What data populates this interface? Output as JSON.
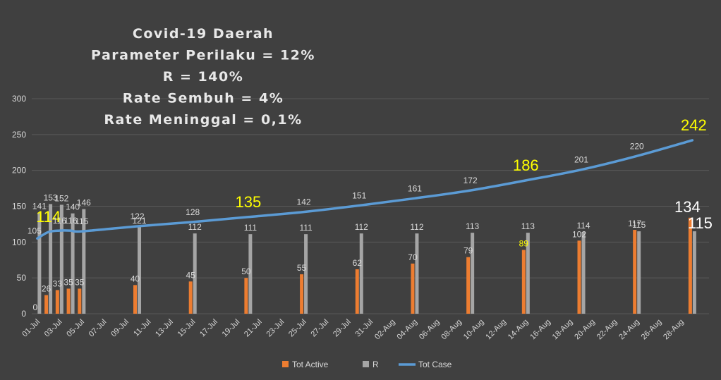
{
  "colors": {
    "background": "#404040",
    "gridline": "#595959",
    "tot_active": "#ed7d31",
    "r": "#a5a5a5",
    "tot_case": "#5b9bd5",
    "highlight": "#ffff00",
    "text": "#d9d9d9"
  },
  "chart_data": {
    "type": "bar",
    "title_lines": [
      "Covid-19 Daerah",
      "Parameter Perilaku = 12%",
      "R = 140%",
      "Rate Sembuh = 4%",
      "Rate Meninggal = 0,1%"
    ],
    "ylim": [
      0,
      300
    ],
    "yticks": [
      "0",
      "50",
      "100",
      "150",
      "200",
      "250",
      "300"
    ],
    "x_tick_labels": [
      "01-Jul",
      "03-Jul",
      "05-Jul",
      "07-Jul",
      "09-Jul",
      "11-Jul",
      "13-Jul",
      "15-Jul",
      "17-Jul",
      "19-Jul",
      "21-Jul",
      "23-Jul",
      "25-Jul",
      "27-Jul",
      "29-Jul",
      "31-Jul",
      "02-Aug",
      "04-Aug",
      "06-Aug",
      "08-Aug",
      "10-Aug",
      "12-Aug",
      "14-Aug",
      "16-Aug",
      "18-Aug",
      "20-Aug",
      "22-Aug",
      "24-Aug",
      "26-Aug",
      "28-Aug"
    ],
    "grid": true,
    "legend_position": "bottom",
    "categories": [
      "01-Jul",
      "02-Jul",
      "03-Jul",
      "04-Jul",
      "05-Jul",
      "10-Jul",
      "15-Jul",
      "20-Jul",
      "25-Jul",
      "30-Jul",
      "04-Aug",
      "09-Aug",
      "14-Aug",
      "19-Aug",
      "24-Aug",
      "29-Aug"
    ],
    "series": [
      {
        "name": "Tot Active",
        "kind": "bar",
        "values": [
          0,
          26,
          33,
          35,
          35,
          40,
          45,
          50,
          55,
          62,
          70,
          79,
          89,
          102,
          117,
          134
        ],
        "labels": [
          "0",
          "26",
          "33",
          "35",
          "35",
          "40",
          "45",
          "50",
          "55",
          "62",
          "70",
          "79",
          "89",
          "102",
          "117",
          "134"
        ]
      },
      {
        "name": "R",
        "kind": "bar",
        "values": [
          141,
          153,
          152,
          140,
          146,
          121,
          112,
          111,
          111,
          112,
          112,
          113,
          113,
          114,
          115,
          115
        ],
        "labels": [
          "141",
          "153",
          "152",
          "140",
          "146",
          "121",
          "112",
          "111",
          "111",
          "112",
          "112",
          "113",
          "113",
          "114",
          "115",
          "115"
        ]
      },
      {
        "name": "Tot Case",
        "kind": "line",
        "values": [
          105,
          114,
          116,
          116,
          115,
          122,
          128,
          135,
          142,
          151,
          161,
          172,
          186,
          201,
          220,
          242
        ],
        "labels": [
          "105",
          "114",
          "116",
          "116",
          "115",
          "122",
          "128",
          "135",
          "142",
          "151",
          "161",
          "172",
          "186",
          "201",
          "220",
          "242"
        ]
      }
    ]
  }
}
